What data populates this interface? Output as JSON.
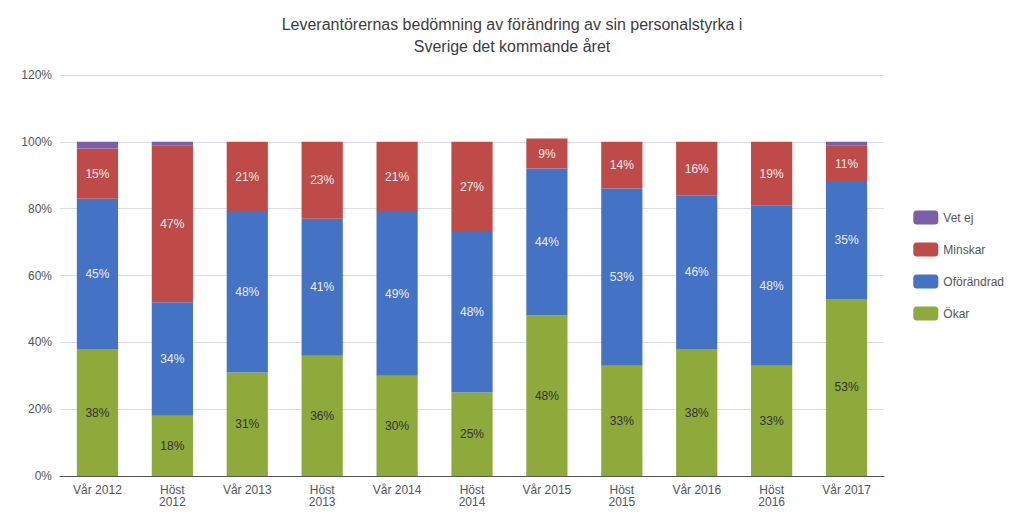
{
  "chart_data": {
    "type": "bar",
    "title": "Leverantörernas bedömning av förändring av sin personalstyrka i\nSverige det kommande året",
    "categories": [
      "Vår 2012",
      "Höst\n2012",
      "Vår 2013",
      "Höst\n2013",
      "Vår 2014",
      "Höst\n2014",
      "Vår 2015",
      "Höst\n2015",
      "Vår 2016",
      "Höst\n2016",
      "Vår 2017"
    ],
    "stacked": true,
    "grid": true,
    "legend": "right",
    "ylim": [
      0,
      120
    ],
    "yticks": [
      {
        "value": 0,
        "label": "0%"
      },
      {
        "value": 20,
        "label": "20%"
      },
      {
        "value": 40,
        "label": "40%"
      },
      {
        "value": 60,
        "label": "60%"
      },
      {
        "value": 80,
        "label": "80%"
      },
      {
        "value": 100,
        "label": "100%"
      },
      {
        "value": 120,
        "label": "120%"
      }
    ],
    "series": [
      {
        "name": "Ökar",
        "color": "#8EAA3A",
        "data_labels": true,
        "values": [
          38,
          18,
          31,
          36,
          30,
          25,
          48,
          33,
          38,
          33,
          53
        ],
        "value_labels": [
          "38%",
          "18%",
          "31%",
          "36%",
          "30%",
          "25%",
          "48%",
          "33%",
          "38%",
          "33%",
          "53%"
        ]
      },
      {
        "name": "Oförändrad",
        "color": "#4472C4",
        "data_labels": true,
        "values": [
          45,
          34,
          48,
          41,
          49,
          48,
          44,
          53,
          46,
          48,
          35
        ],
        "value_labels": [
          "45%",
          "34%",
          "48%",
          "41%",
          "49%",
          "48%",
          "44%",
          "53%",
          "46%",
          "48%",
          "35%"
        ]
      },
      {
        "name": "Minskar",
        "color": "#BE4B48",
        "data_labels": true,
        "values": [
          15,
          47,
          21,
          23,
          21,
          27,
          9,
          14,
          16,
          19,
          11
        ],
        "value_labels": [
          "15%",
          "47%",
          "21%",
          "23%",
          "21%",
          "27%",
          "9%",
          "14%",
          "16%",
          "19%",
          "11%"
        ]
      },
      {
        "name": "Vet ej",
        "color": "#7B5EA7",
        "data_labels": false,
        "values": [
          2,
          1,
          0,
          0,
          0,
          0,
          0,
          0,
          0,
          0,
          1
        ]
      }
    ]
  }
}
